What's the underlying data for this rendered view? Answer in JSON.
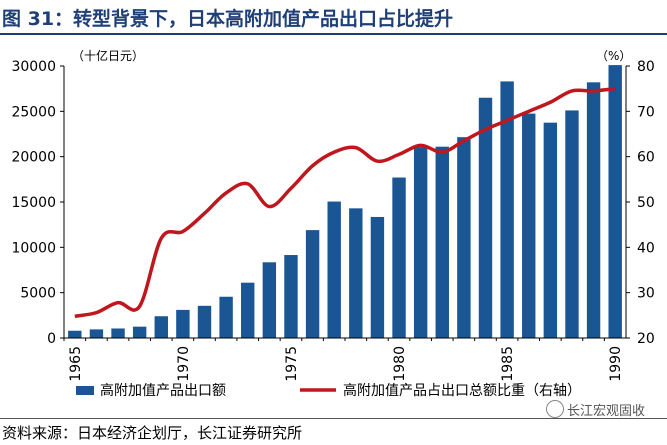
{
  "title": "图 31：转型背景下，日本高附加值产品出口占比提升",
  "source": "资料来源：日本经济企划厅，长江证券研究所",
  "watermark": "长江宏观固收",
  "colors": {
    "title": "#1f3f77",
    "bar": "#1a5694",
    "line": "#c0161d"
  },
  "chart_data": {
    "type": "bar",
    "categories": [
      "1965",
      "1966",
      "1967",
      "1968",
      "1969",
      "1970",
      "1971",
      "1972",
      "1973",
      "1974",
      "1975",
      "1976",
      "1977",
      "1978",
      "1979",
      "1980",
      "1981",
      "1982",
      "1983",
      "1984",
      "1985",
      "1986",
      "1987",
      "1988",
      "1989",
      "1990"
    ],
    "x_tick_labels": [
      "1965",
      "1970",
      "1975",
      "1980",
      "1985",
      "1990"
    ],
    "y_left": {
      "unit_label": "（十亿日元）",
      "ticks": [
        "0",
        "5000",
        "10000",
        "15000",
        "20000",
        "25000",
        "30000"
      ],
      "range": [
        0,
        30000
      ]
    },
    "y_right": {
      "unit_label": "（%）",
      "ticks": [
        "20",
        "30",
        "40",
        "50",
        "60",
        "70",
        "80"
      ],
      "range": [
        20,
        80
      ]
    },
    "grid": false,
    "legend_position": "bottom",
    "series": [
      {
        "name": "高附加值产品出口额",
        "type": "bar",
        "axis": "left",
        "values": [
          800,
          950,
          1050,
          1250,
          2400,
          3100,
          3550,
          4550,
          6100,
          8350,
          9150,
          11900,
          15050,
          14300,
          13350,
          17700,
          21050,
          21100,
          22150,
          26500,
          28300,
          24750,
          23750,
          25100,
          28200,
          30100
        ]
      },
      {
        "name": "高附加值产品占出口总额比重（右轴）",
        "type": "line",
        "axis": "right",
        "values": [
          24.8,
          25.6,
          27.8,
          27.0,
          42.0,
          43.5,
          47.5,
          52.0,
          54.0,
          49.0,
          53.0,
          58.0,
          61.0,
          62.0,
          59.0,
          60.5,
          62.5,
          61.0,
          63.5,
          66.0,
          68.0,
          70.0,
          72.0,
          74.5,
          74.5,
          75.0
        ]
      }
    ]
  }
}
